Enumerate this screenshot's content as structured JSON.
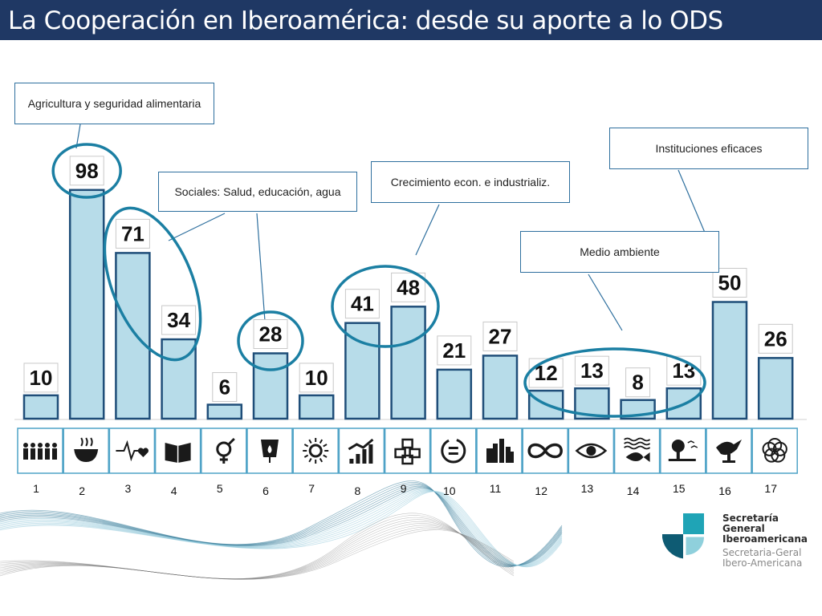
{
  "header": {
    "title": "La Cooperación en Iberoamérica: desde su aporte a lo ODS"
  },
  "callouts": {
    "agricultura": "Agricultura y seguridad alimentaria",
    "sociales": "Sociales: Salud, educación, agua",
    "crecimiento": "Crecimiento econ. e industrializ.",
    "instituciones": "Instituciones eficaces",
    "medio_ambiente": "Medio ambiente"
  },
  "brand": {
    "line1": "Secretaría General",
    "line2": "Iberoamericana",
    "line3": "Secretaria-Geral",
    "line4": "Ibero-Americana",
    "colors": {
      "teal": "#1fa4b6",
      "dark": "#0e5b73"
    }
  },
  "colors": {
    "bar_fill": "#b7dce9",
    "bar_stroke": "#1f4e79",
    "ellipse": "#1b7fa3",
    "header": "#1f3864",
    "icon_tile": "#4fa3c7"
  },
  "icons": [
    "people-icon",
    "bowl-icon",
    "heartbeat-icon",
    "book-icon",
    "gender-icon",
    "water-drop-icon",
    "sun-icon",
    "growth-chart-icon",
    "cubes-icon",
    "equal-icon",
    "city-icon",
    "infinity-icon",
    "eye-icon",
    "fish-icon",
    "tree-icon",
    "dove-icon",
    "flower-icon"
  ],
  "chart_data": {
    "type": "bar",
    "categories": [
      "1",
      "2",
      "3",
      "4",
      "5",
      "6",
      "7",
      "8",
      "9",
      "10",
      "11",
      "12",
      "13",
      "14",
      "15",
      "16",
      "17"
    ],
    "values": [
      10,
      98,
      71,
      34,
      6,
      28,
      10,
      41,
      48,
      21,
      27,
      12,
      13,
      8,
      13,
      50,
      26
    ],
    "title": "",
    "xlabel": "",
    "ylabel": "",
    "ylim": [
      0,
      100
    ],
    "grid": false,
    "legend": "none"
  }
}
